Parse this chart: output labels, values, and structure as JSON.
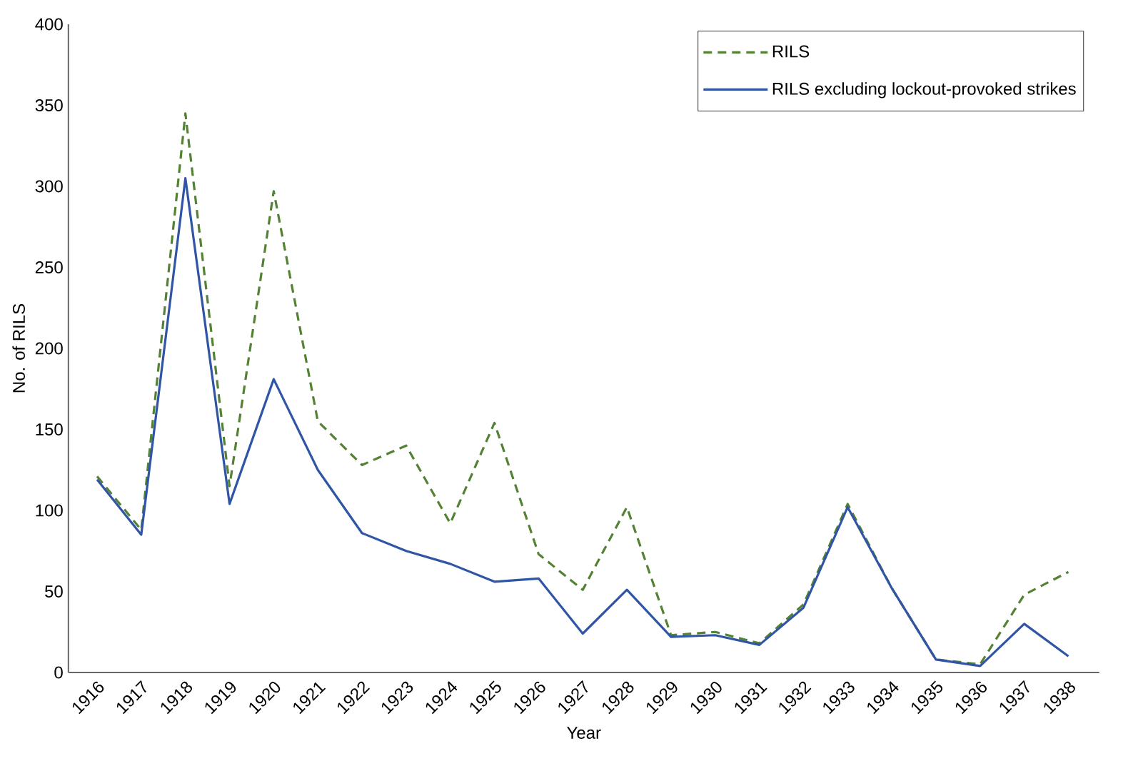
{
  "chart_data": {
    "type": "line",
    "xlabel": "Year",
    "ylabel": "No. of RILS",
    "categories": [
      "1916",
      "1917",
      "1918",
      "1919",
      "1920",
      "1921",
      "1922",
      "1923",
      "1924",
      "1925",
      "1926",
      "1927",
      "1928",
      "1929",
      "1930",
      "1931",
      "1932",
      "1933",
      "1934",
      "1935",
      "1936",
      "1937",
      "1938"
    ],
    "series": [
      {
        "name": "RILS",
        "color": "#548235",
        "line_style": "dashed",
        "values": [
          121,
          88,
          345,
          115,
          297,
          155,
          128,
          140,
          92,
          154,
          73,
          51,
          102,
          23,
          25,
          18,
          42,
          104,
          52,
          8,
          5,
          48,
          62
        ]
      },
      {
        "name": "RILS excluding lockout-provoked strikes",
        "color": "#2f55a4",
        "line_style": "solid",
        "values": [
          119,
          85,
          305,
          104,
          181,
          125,
          86,
          75,
          67,
          56,
          58,
          24,
          51,
          22,
          23,
          17,
          40,
          102,
          52,
          8,
          4,
          30,
          10
        ]
      }
    ],
    "ylim": [
      0,
      400
    ],
    "yticks": [
      0,
      50,
      100,
      150,
      200,
      250,
      300,
      350,
      400
    ],
    "legend": "top right",
    "grid": false,
    "marker": "none"
  }
}
